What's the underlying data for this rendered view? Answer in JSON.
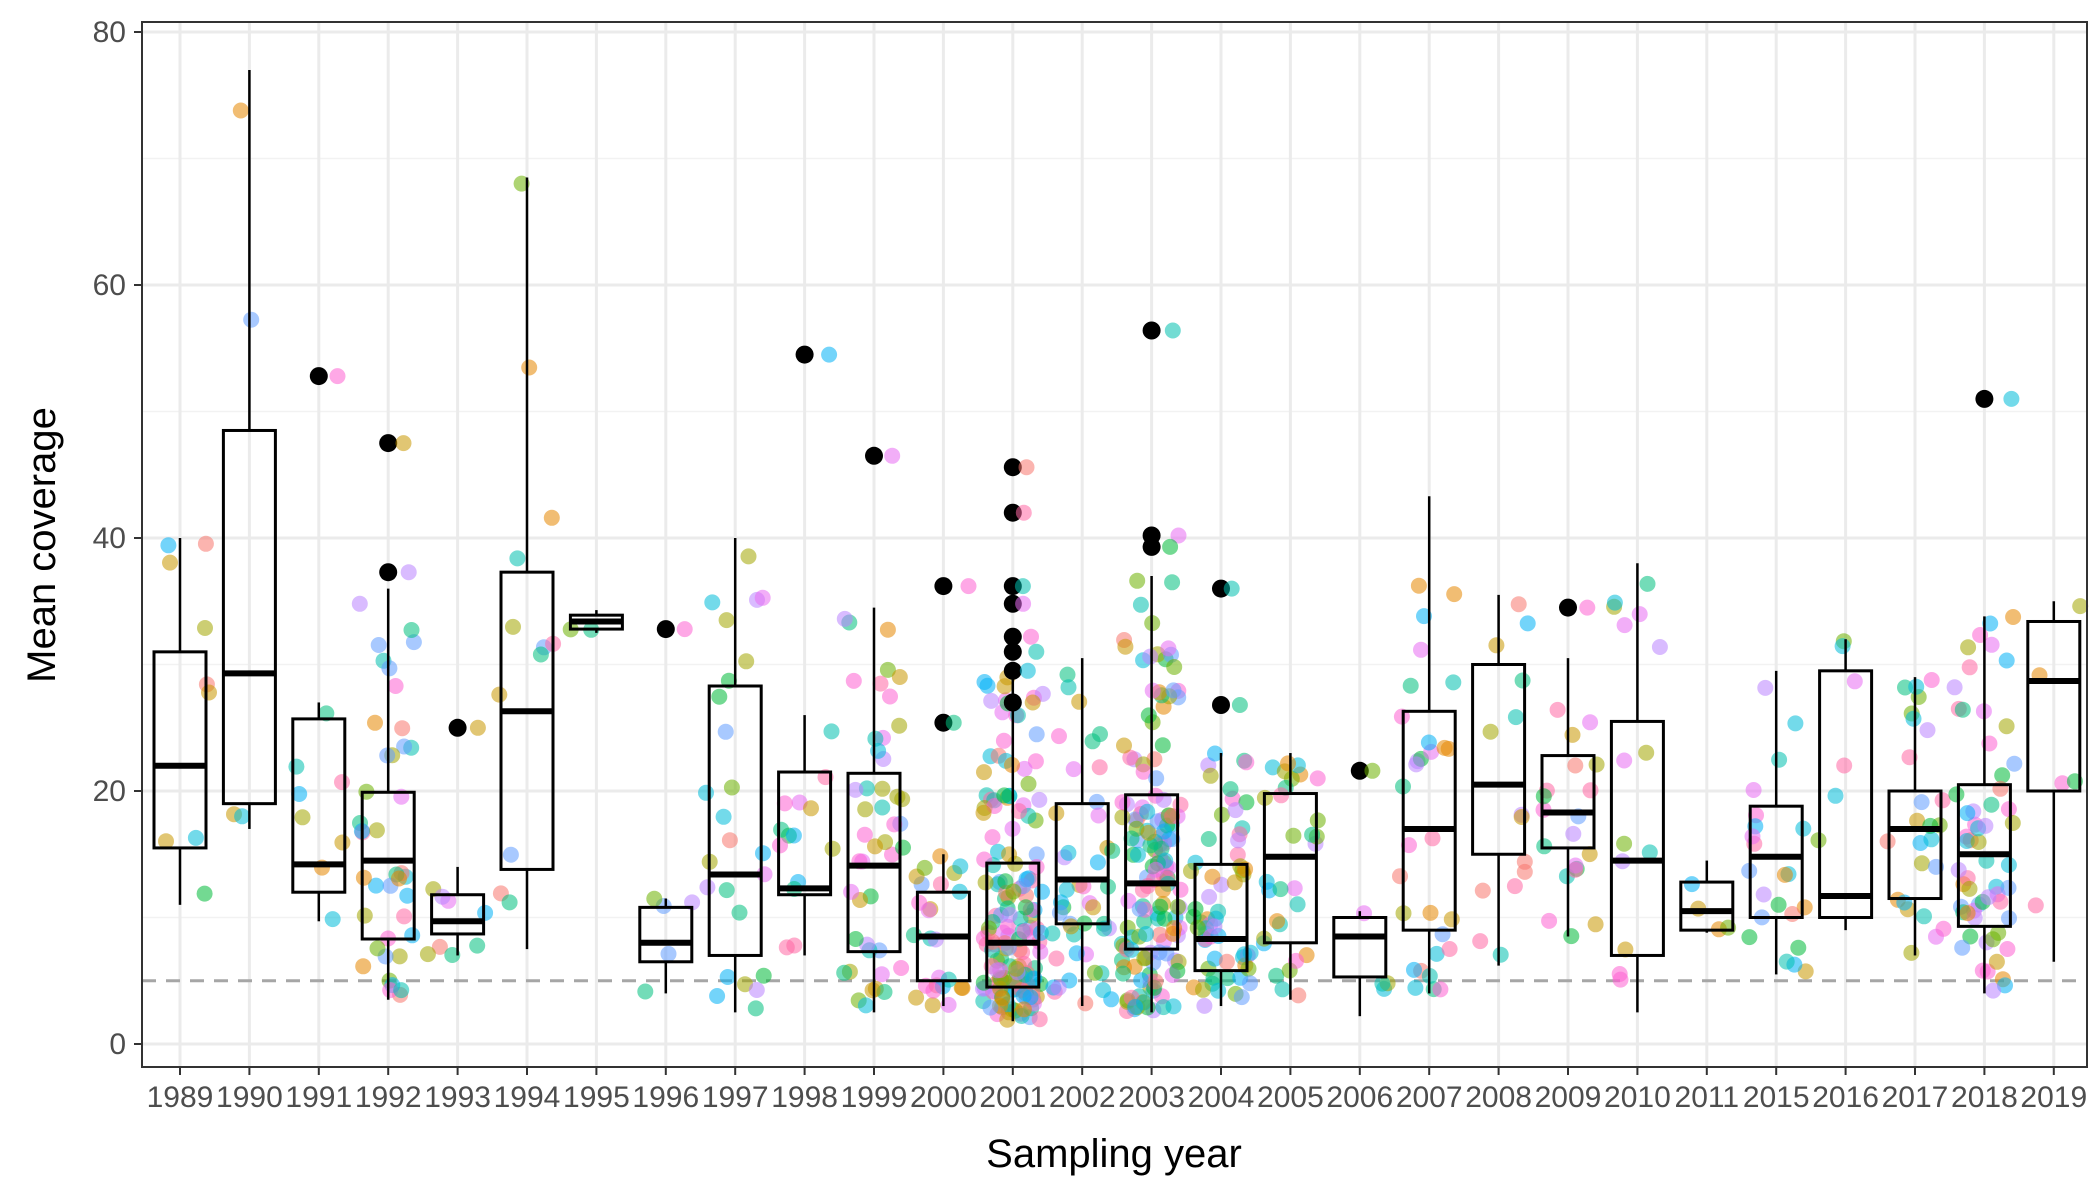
{
  "chart_data": {
    "type": "boxplot",
    "xlabel": "Sampling year",
    "ylabel": "Mean coverage",
    "ylim": [
      -2,
      81
    ],
    "y_ticks": [
      0,
      20,
      40,
      60,
      80
    ],
    "grid": true,
    "threshold_line": {
      "y": 5,
      "style": "dashed",
      "color": "#a6a6a6"
    },
    "categories": [
      "1989",
      "1990",
      "1991",
      "1992",
      "1993",
      "1994",
      "1995",
      "1996",
      "1997",
      "1998",
      "1999",
      "2000",
      "2001",
      "2002",
      "2003",
      "2004",
      "2005",
      "2006",
      "2007",
      "2008",
      "2009",
      "2010",
      "2011",
      "2015",
      "2016",
      "2017",
      "2018",
      "2019"
    ],
    "boxes": [
      {
        "year": "1989",
        "q1": 15.5,
        "median": 22,
        "q3": 31,
        "lo": 11,
        "hi": 40
      },
      {
        "year": "1990",
        "q1": 19,
        "median": 29.3,
        "q3": 48.5,
        "lo": 17,
        "hi": 77
      },
      {
        "year": "1991",
        "q1": 12,
        "median": 14.2,
        "q3": 25.7,
        "lo": 9.7,
        "hi": 27
      },
      {
        "year": "1992",
        "q1": 8.3,
        "median": 14.5,
        "q3": 19.9,
        "lo": 3.5,
        "hi": 36
      },
      {
        "year": "1993",
        "q1": 8.7,
        "median": 9.7,
        "q3": 11.8,
        "lo": 7,
        "hi": 14
      },
      {
        "year": "1994",
        "q1": 13.8,
        "median": 26.3,
        "q3": 37.3,
        "lo": 7.5,
        "hi": 68.5
      },
      {
        "year": "1995",
        "q1": 32.8,
        "median": 33.4,
        "q3": 33.9,
        "lo": 32.5,
        "hi": 34.3
      },
      {
        "year": "1996",
        "q1": 6.5,
        "median": 8,
        "q3": 10.8,
        "lo": 4,
        "hi": 11.5
      },
      {
        "year": "1997",
        "q1": 7,
        "median": 13.4,
        "q3": 28.3,
        "lo": 2.5,
        "hi": 40
      },
      {
        "year": "1998",
        "q1": 11.8,
        "median": 12.3,
        "q3": 21.5,
        "lo": 7,
        "hi": 26
      },
      {
        "year": "1999",
        "q1": 7.3,
        "median": 14.1,
        "q3": 21.4,
        "lo": 2.5,
        "hi": 34.5
      },
      {
        "year": "2000",
        "q1": 5,
        "median": 8.5,
        "q3": 12,
        "lo": 3,
        "hi": 15
      },
      {
        "year": "2001",
        "q1": 4.5,
        "median": 8,
        "q3": 14.3,
        "lo": 1.8,
        "hi": 29
      },
      {
        "year": "2002",
        "q1": 9.5,
        "median": 13,
        "q3": 19,
        "lo": 3,
        "hi": 30.5
      },
      {
        "year": "2003",
        "q1": 7.5,
        "median": 12.7,
        "q3": 19.7,
        "lo": 2.5,
        "hi": 37
      },
      {
        "year": "2004",
        "q1": 5.8,
        "median": 8.3,
        "q3": 14.2,
        "lo": 3,
        "hi": 23
      },
      {
        "year": "2005",
        "q1": 8,
        "median": 14.8,
        "q3": 19.8,
        "lo": 3.5,
        "hi": 23
      },
      {
        "year": "2006",
        "q1": 5.3,
        "median": 8.5,
        "q3": 10,
        "lo": 2.2,
        "hi": 10.5
      },
      {
        "year": "2007",
        "q1": 9,
        "median": 17,
        "q3": 26.3,
        "lo": 4,
        "hi": 43.3
      },
      {
        "year": "2008",
        "q1": 15,
        "median": 20.5,
        "q3": 30,
        "lo": 6.2,
        "hi": 35.5
      },
      {
        "year": "2009",
        "q1": 15.5,
        "median": 18.3,
        "q3": 22.8,
        "lo": 8.5,
        "hi": 30.5
      },
      {
        "year": "2010",
        "q1": 7,
        "median": 14.5,
        "q3": 25.5,
        "lo": 2.5,
        "hi": 38
      },
      {
        "year": "2011",
        "q1": 9,
        "median": 10.5,
        "q3": 12.8,
        "lo": 8.8,
        "hi": 14.5
      },
      {
        "year": "2015",
        "q1": 10,
        "median": 14.8,
        "q3": 18.8,
        "lo": 5.5,
        "hi": 29.5
      },
      {
        "year": "2016",
        "q1": 10,
        "median": 11.7,
        "q3": 29.5,
        "lo": 9,
        "hi": 32
      },
      {
        "year": "2017",
        "q1": 11.5,
        "median": 17,
        "q3": 20,
        "lo": 7,
        "hi": 29
      },
      {
        "year": "2018",
        "q1": 9.3,
        "median": 15,
        "q3": 20.5,
        "lo": 4,
        "hi": 33.8
      },
      {
        "year": "2019",
        "q1": 20,
        "median": 28.7,
        "q3": 33.4,
        "lo": 6.5,
        "hi": 35
      }
    ],
    "outliers": [
      {
        "year": "1991",
        "y": 52.8
      },
      {
        "year": "1992",
        "y": 47.5
      },
      {
        "year": "1992",
        "y": 37.3
      },
      {
        "year": "1993",
        "y": 25
      },
      {
        "year": "1996",
        "y": 32.8
      },
      {
        "year": "1998",
        "y": 54.5
      },
      {
        "year": "1999",
        "y": 46.5
      },
      {
        "year": "2000",
        "y": 36.2
      },
      {
        "year": "2000",
        "y": 25.4
      },
      {
        "year": "2001",
        "y": 45.6
      },
      {
        "year": "2001",
        "y": 42
      },
      {
        "year": "2001",
        "y": 36.2
      },
      {
        "year": "2001",
        "y": 34.8
      },
      {
        "year": "2001",
        "y": 32.2
      },
      {
        "year": "2001",
        "y": 31
      },
      {
        "year": "2001",
        "y": 29.5
      },
      {
        "year": "2001",
        "y": 27
      },
      {
        "year": "2003",
        "y": 56.4
      },
      {
        "year": "2003",
        "y": 40.2
      },
      {
        "year": "2003",
        "y": 39.3
      },
      {
        "year": "2004",
        "y": 36
      },
      {
        "year": "2004",
        "y": 26.8
      },
      {
        "year": "2006",
        "y": 21.6
      },
      {
        "year": "2009",
        "y": 34.5
      },
      {
        "year": "2018",
        "y": 51
      }
    ],
    "jitter_points_per_year": [
      {
        "year": "1989",
        "n": 9
      },
      {
        "year": "1990",
        "n": 4
      },
      {
        "year": "1991",
        "n": 8
      },
      {
        "year": "1992",
        "n": 40
      },
      {
        "year": "1993",
        "n": 8
      },
      {
        "year": "1994",
        "n": 12
      },
      {
        "year": "1995",
        "n": 2
      },
      {
        "year": "1996",
        "n": 5
      },
      {
        "year": "1997",
        "n": 25
      },
      {
        "year": "1998",
        "n": 14
      },
      {
        "year": "1999",
        "n": 45
      },
      {
        "year": "2000",
        "n": 25
      },
      {
        "year": "2001",
        "n": 160
      },
      {
        "year": "2002",
        "n": 45
      },
      {
        "year": "2003",
        "n": 150
      },
      {
        "year": "2004",
        "n": 60
      },
      {
        "year": "2005",
        "n": 30
      },
      {
        "year": "2006",
        "n": 4
      },
      {
        "year": "2007",
        "n": 30
      },
      {
        "year": "2008",
        "n": 14
      },
      {
        "year": "2009",
        "n": 20
      },
      {
        "year": "2010",
        "n": 14
      },
      {
        "year": "2011",
        "n": 4
      },
      {
        "year": "2015",
        "n": 22
      },
      {
        "year": "2016",
        "n": 6
      },
      {
        "year": "2017",
        "n": 25
      },
      {
        "year": "2018",
        "n": 60
      },
      {
        "year": "2019",
        "n": 5
      }
    ],
    "point_colors": [
      "#F8766D",
      "#E58700",
      "#C99800",
      "#A3A500",
      "#6BB100",
      "#00BA38",
      "#00BF7D",
      "#00C0AF",
      "#00BCD8",
      "#00B0F6",
      "#619CFF",
      "#B983FF",
      "#E76BF3",
      "#FD61D1",
      "#FF67A4"
    ],
    "outlier_color": "#000000"
  }
}
